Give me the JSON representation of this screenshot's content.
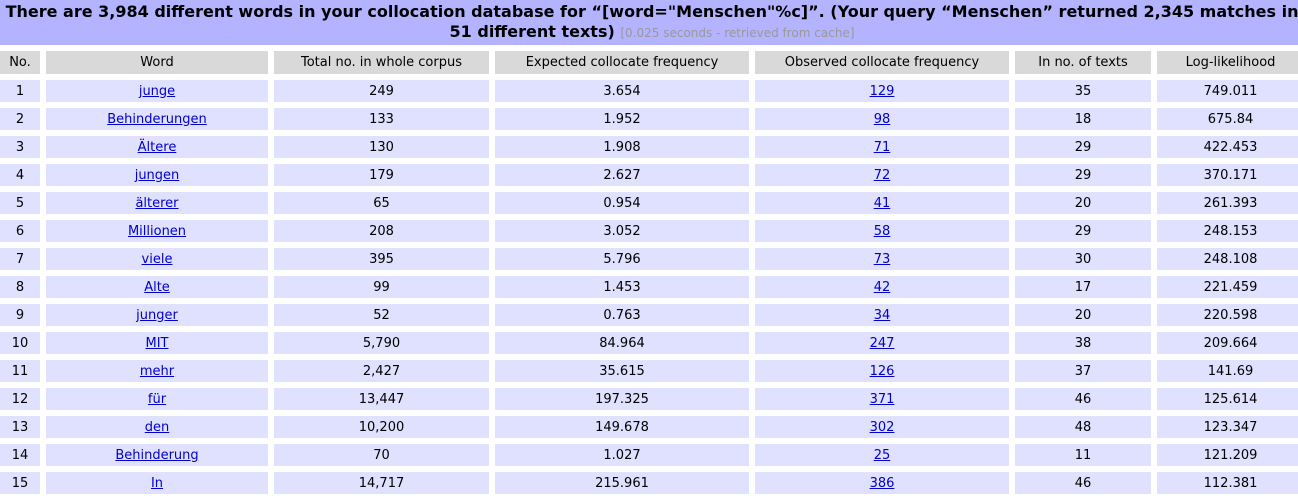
{
  "header": {
    "title": "There are 3,984 different words in your collocation database for “[word=\"Menschen\"%c]”. (Your query “Menschen” returned 2,345 matches in 51 different texts)",
    "note": "[0.025 seconds - retrieved from cache]"
  },
  "columns": [
    "No.",
    "Word",
    "Total no. in whole corpus",
    "Expected collocate frequency",
    "Observed collocate frequency",
    "In no. of texts",
    "Log-likelihood"
  ],
  "rows": [
    {
      "no": "1",
      "word": "junge",
      "total": "249",
      "expected": "3.654",
      "observed": "129",
      "texts": "35",
      "ll": "749.011"
    },
    {
      "no": "2",
      "word": "Behinderungen",
      "total": "133",
      "expected": "1.952",
      "observed": "98",
      "texts": "18",
      "ll": "675.84"
    },
    {
      "no": "3",
      "word": "Ältere",
      "total": "130",
      "expected": "1.908",
      "observed": "71",
      "texts": "29",
      "ll": "422.453"
    },
    {
      "no": "4",
      "word": "jungen",
      "total": "179",
      "expected": "2.627",
      "observed": "72",
      "texts": "29",
      "ll": "370.171"
    },
    {
      "no": "5",
      "word": "älterer",
      "total": "65",
      "expected": "0.954",
      "observed": "41",
      "texts": "20",
      "ll": "261.393"
    },
    {
      "no": "6",
      "word": "Millionen",
      "total": "208",
      "expected": "3.052",
      "observed": "58",
      "texts": "29",
      "ll": "248.153"
    },
    {
      "no": "7",
      "word": "viele",
      "total": "395",
      "expected": "5.796",
      "observed": "73",
      "texts": "30",
      "ll": "248.108"
    },
    {
      "no": "8",
      "word": "Alte",
      "total": "99",
      "expected": "1.453",
      "observed": "42",
      "texts": "17",
      "ll": "221.459"
    },
    {
      "no": "9",
      "word": "junger",
      "total": "52",
      "expected": "0.763",
      "observed": "34",
      "texts": "20",
      "ll": "220.598"
    },
    {
      "no": "10",
      "word": "MIT",
      "total": "5,790",
      "expected": "84.964",
      "observed": "247",
      "texts": "38",
      "ll": "209.664"
    },
    {
      "no": "11",
      "word": "mehr",
      "total": "2,427",
      "expected": "35.615",
      "observed": "126",
      "texts": "37",
      "ll": "141.69"
    },
    {
      "no": "12",
      "word": "für",
      "total": "13,447",
      "expected": "197.325",
      "observed": "371",
      "texts": "46",
      "ll": "125.614"
    },
    {
      "no": "13",
      "word": "den",
      "total": "10,200",
      "expected": "149.678",
      "observed": "302",
      "texts": "48",
      "ll": "123.347"
    },
    {
      "no": "14",
      "word": "Behinderung",
      "total": "70",
      "expected": "1.027",
      "observed": "25",
      "texts": "11",
      "ll": "121.209"
    },
    {
      "no": "15",
      "word": "In",
      "total": "14,717",
      "expected": "215.961",
      "observed": "386",
      "texts": "46",
      "ll": "112.381"
    }
  ]
}
